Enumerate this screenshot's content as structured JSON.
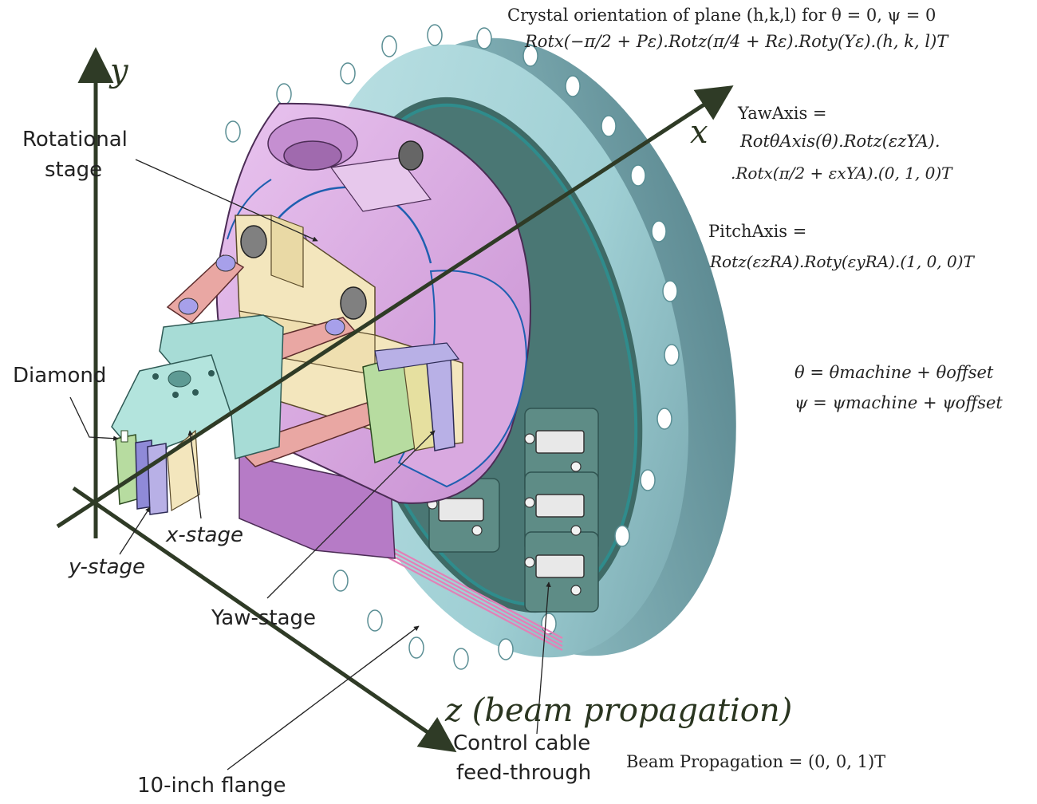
{
  "labels": {
    "rotational_stage_line1": "Rotational",
    "rotational_stage_line2": "stage",
    "diamond": "Diamond",
    "x_stage": "x-stage",
    "y_stage": "y-stage",
    "yaw_stage": "Yaw-stage",
    "ten_inch_flange": "10-inch flange",
    "control_cable_line1": "Control cable",
    "control_cable_line2": "feed-through"
  },
  "axes": {
    "x": "x",
    "y": "y",
    "z": "z (beam propagation)"
  },
  "equations": {
    "crystal_title": "Crystal orientation of plane (h,k,l) for θ = 0, ψ = 0",
    "crystal_formula": "Rotx(−π/2 + Pε).Rotz(π/4 + Rε).Roty(Yε).(h, k, l)T",
    "yaw_axis_title": "YawAxis =",
    "yaw_axis_line1": "RotθAxis(θ).Rotz(εzYA).",
    "yaw_axis_line2": ".Rotx(π/2 + εxYA).(0, 1, 0)T",
    "pitch_axis_title": "PitchAxis =",
    "pitch_axis_line1": "Rotz(εzRA).Roty(εyRA).(1, 0, 0)T",
    "theta_def": "θ = θmachine + θoffset",
    "psi_def": "ψ = ψmachine + ψoffset",
    "beam_propagation": "Beam Propagation = (0, 0, 1)T"
  },
  "colors": {
    "axis": "#2f3b26",
    "flange_face": "#4a7774",
    "flange_rim": "#9fcfd4",
    "flange_edge": "#7fb6bd",
    "rotational_stage": "#d7a6df",
    "yaw_stage": "#f3e6bd",
    "arm_pink": "#e9a7a3",
    "mount_cyan": "#a7dcd6",
    "stage_green": "#b7dca0",
    "stage_violet": "#b8b0e6",
    "cable_pink": "#e47fb6"
  }
}
